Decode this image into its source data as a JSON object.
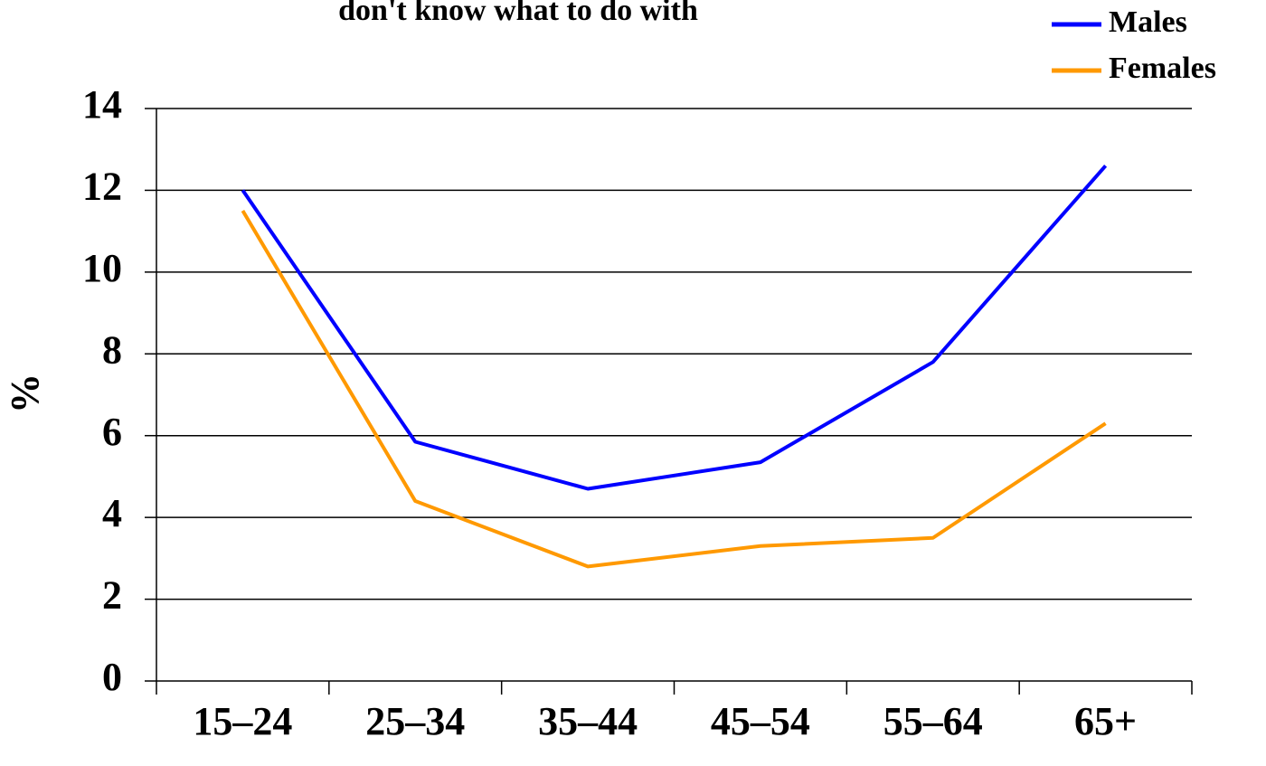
{
  "chart_data": {
    "type": "line",
    "title": "don't know what to do with",
    "y_label": "%",
    "categories": [
      "15–24",
      "25–34",
      "35–44",
      "45–54",
      "55–64",
      "65+"
    ],
    "series": [
      {
        "name": "Males",
        "color": "#0000ff",
        "values": [
          12.0,
          5.85,
          4.7,
          5.35,
          7.8,
          12.6
        ]
      },
      {
        "name": "Females",
        "color": "#ff9900",
        "values": [
          11.5,
          4.4,
          2.8,
          3.3,
          3.5,
          6.3
        ]
      }
    ],
    "ylim": [
      0,
      14
    ],
    "yticks": [
      0,
      2,
      4,
      6,
      8,
      10,
      12,
      14
    ],
    "grid": true,
    "legend": "top-right"
  }
}
